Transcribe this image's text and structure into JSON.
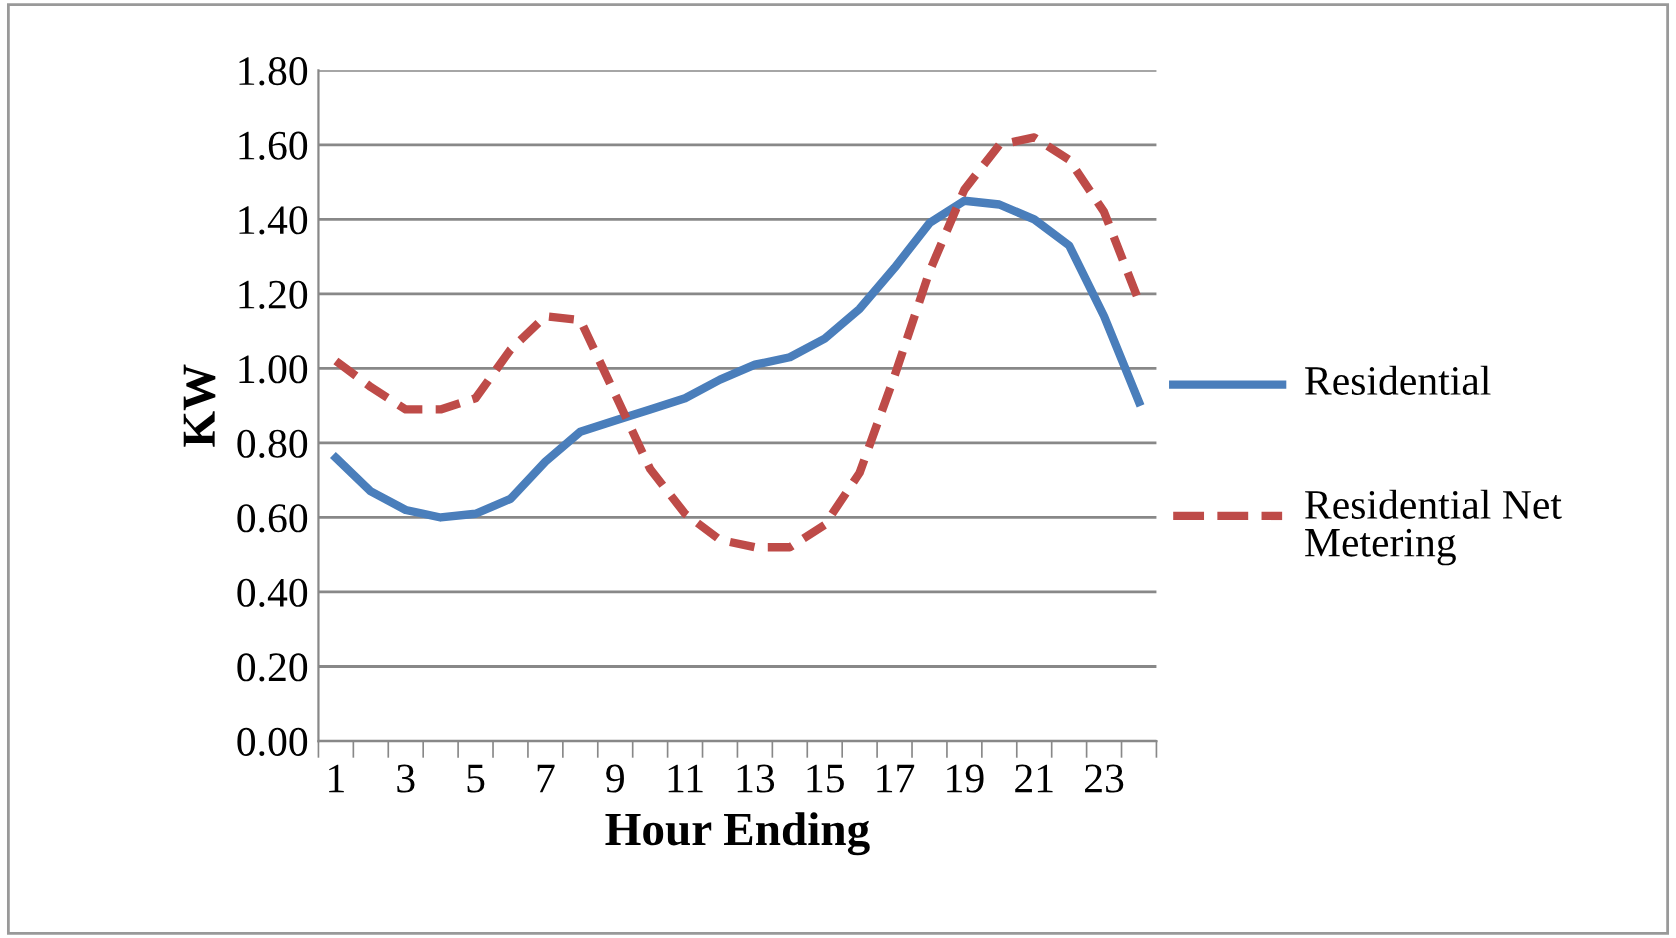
{
  "chart_data": {
    "type": "line",
    "xlabel": "Hour Ending",
    "ylabel": "KW",
    "categories": [
      "1",
      null,
      "3",
      null,
      "5",
      null,
      "7",
      null,
      "9",
      null,
      "11",
      null,
      "13",
      null,
      "15",
      null,
      "17",
      null,
      "19",
      null,
      "21",
      null,
      "23",
      null
    ],
    "series": [
      {
        "name": "Residential",
        "color": "#4a7ebb",
        "line_style": "solid",
        "values": [
          0.76,
          0.67,
          0.62,
          0.6,
          0.61,
          0.65,
          0.75,
          0.83,
          0.86,
          0.89,
          0.92,
          0.97,
          1.01,
          1.03,
          1.08,
          1.16,
          1.27,
          1.39,
          1.45,
          1.44,
          1.4,
          1.33,
          1.14,
          0.91
        ]
      },
      {
        "name": "Residential Net Metering",
        "color": "#be4b48",
        "line_style": "dashed",
        "values": [
          1.02,
          0.95,
          0.89,
          0.89,
          0.92,
          1.05,
          1.14,
          1.13,
          0.93,
          0.73,
          0.61,
          0.54,
          0.52,
          0.52,
          0.58,
          0.72,
          0.98,
          1.26,
          1.48,
          1.6,
          1.62,
          1.56,
          1.42,
          1.18
        ]
      }
    ],
    "ylim": [
      0,
      1.8
    ],
    "yticks": [
      {
        "value": 0,
        "label": "0.00"
      },
      {
        "value": 0.2,
        "label": "0.20"
      },
      {
        "value": 0.4,
        "label": "0.40"
      },
      {
        "value": 0.6,
        "label": "0.60"
      },
      {
        "value": 0.8,
        "label": "0.80"
      },
      {
        "value": 1.0,
        "label": "1.00"
      },
      {
        "value": 1.2,
        "label": "1.20"
      },
      {
        "value": 1.4,
        "label": "1.40"
      },
      {
        "value": 1.6,
        "label": "1.60"
      },
      {
        "value": 1.8,
        "label": "1.80"
      }
    ],
    "grid": "y",
    "legend": "right",
    "marker": "none"
  }
}
